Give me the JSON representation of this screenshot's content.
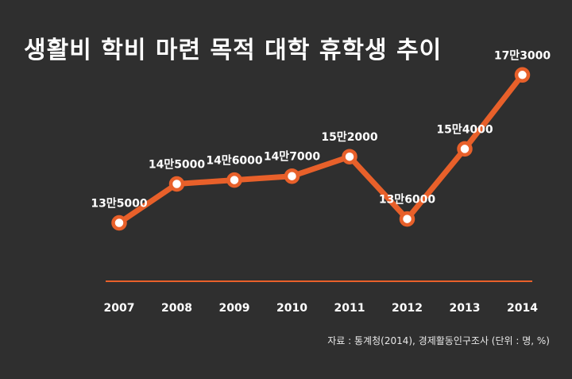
{
  "title": "생활비 학비 마련 목적 대학 휴학생 추이",
  "source": "자료 : 통계청(2014), 경제활동인구조사 (단위 : 명, %)",
  "colors": {
    "background": "#2f2f2f",
    "line": "#e8602a",
    "marker_fill": "#ffffff",
    "text": "#ffffff"
  },
  "chart_data": {
    "type": "line",
    "categories": [
      "2007",
      "2008",
      "2009",
      "2010",
      "2011",
      "2012",
      "2013",
      "2014"
    ],
    "series": [
      {
        "values": [
          135000,
          145000,
          146000,
          147000,
          152000,
          136000,
          154000,
          173000
        ],
        "data_labels": [
          "13만5000",
          "14만5000",
          "14만6000",
          "14만7000",
          "15만2000",
          "13만6000",
          "15만4000",
          "17만3000"
        ]
      }
    ],
    "xlabel": "",
    "ylabel": "",
    "ylim": [
      120000,
      180000
    ],
    "grid": false,
    "legend": "none"
  }
}
